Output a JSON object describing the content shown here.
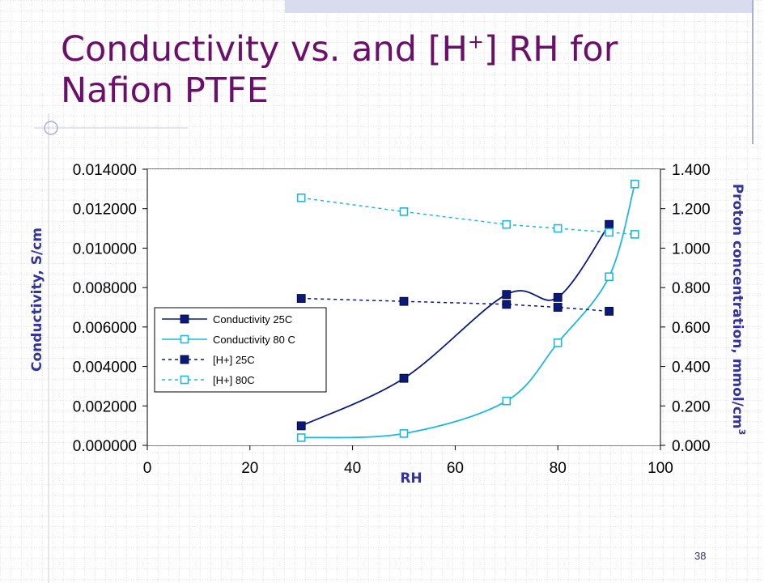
{
  "slide": {
    "title_before_sup": "Conductivity vs. and [H",
    "title_sup": "+",
    "title_after_sup": "] RH for Nafion PTFE",
    "slide_number": "38"
  },
  "colors": {
    "title": "#6b0f6b",
    "axis_title": "#333399",
    "series_dark": "#0a1a7a",
    "series_light": "#1fb7e0",
    "bg_grid_line": "#c8c8e0",
    "bg_band": "#d9dcee"
  },
  "chart_data": {
    "type": "line",
    "xlabel": "RH",
    "ylabel": "Conductivity, S/cm",
    "y2label": "Proton concentration, mmol/cm",
    "y2label_sup": "3",
    "xlim": [
      0,
      100
    ],
    "ylim": [
      0,
      0.014
    ],
    "y2lim": [
      0,
      1.4
    ],
    "x_ticks": [
      "0",
      "20",
      "40",
      "60",
      "80",
      "100"
    ],
    "y_ticks": [
      "0.000000",
      "0.002000",
      "0.004000",
      "0.006000",
      "0.008000",
      "0.010000",
      "0.012000",
      "0.014000"
    ],
    "y2_ticks": [
      "0.000",
      "0.200",
      "0.400",
      "0.600",
      "0.800",
      "1.000",
      "1.200",
      "1.400"
    ],
    "grid": "horizontal",
    "legend_position": "left-middle",
    "series": [
      {
        "name": "Conductivity 25C",
        "axis": "left",
        "line": "solid",
        "marker": "filled-square",
        "color": "#0a1a7a",
        "x": [
          30,
          50,
          70,
          80,
          90
        ],
        "y": [
          0.00099,
          0.0034,
          0.00765,
          0.0075,
          0.0112
        ]
      },
      {
        "name": "Conductivity 80 C",
        "axis": "left",
        "line": "solid",
        "marker": "open-square",
        "color": "#1fb7e0",
        "x": [
          30,
          50,
          70,
          80,
          90,
          95
        ],
        "y": [
          0.00039,
          0.0006,
          0.00225,
          0.0052,
          0.00855,
          0.01325
        ]
      },
      {
        "name": "[H+] 25C",
        "axis": "right",
        "line": "dashed",
        "marker": "filled-square",
        "color": "#0a1a7a",
        "x": [
          30,
          50,
          70,
          80,
          90
        ],
        "y": [
          0.745,
          0.73,
          0.715,
          0.7,
          0.68
        ]
      },
      {
        "name": "[H+] 80C",
        "axis": "right",
        "line": "dashed",
        "marker": "open-square",
        "color": "#1fb7e0",
        "x": [
          30,
          50,
          70,
          80,
          90,
          95
        ],
        "y": [
          1.255,
          1.185,
          1.12,
          1.1,
          1.08,
          1.07
        ]
      }
    ]
  }
}
